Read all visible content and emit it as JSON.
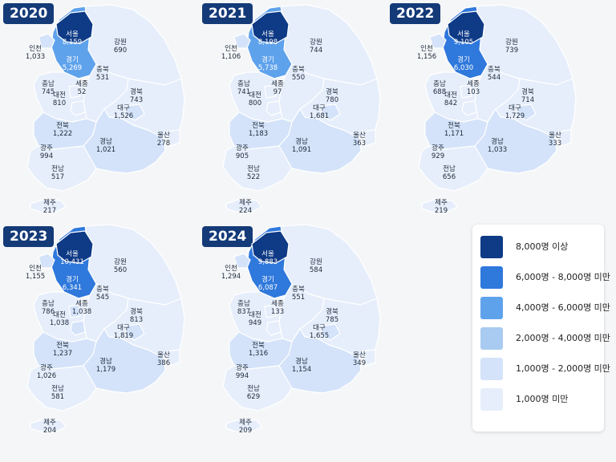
{
  "colors": {
    "c0": "#e6eefb",
    "c1": "#d4e3f9",
    "c2": "#a9cbf1",
    "c3": "#5fa2ec",
    "c4": "#2f78dc",
    "c5": "#0e3a86"
  },
  "legend": [
    {
      "label": "8,000명 이상",
      "color": "#0e3a86"
    },
    {
      "label": "6,000명 - 8,000명 미만",
      "color": "#2f78dc"
    },
    {
      "label": "4,000명 - 6,000명 미만",
      "color": "#5fa2ec"
    },
    {
      "label": "2,000명 - 4,000명 미만",
      "color": "#a9cbf1"
    },
    {
      "label": "1,000명 - 2,000명 미만",
      "color": "#d4e3f9"
    },
    {
      "label": "1,000명 미만",
      "color": "#e6eefb"
    }
  ],
  "region_names": {
    "seoul": "서울",
    "gyeonggi": "경기",
    "incheon": "인천",
    "gangwon": "강원",
    "chungbuk": "충북",
    "chungnam": "충남",
    "sejong": "세종",
    "daejeon": "대전",
    "gyeongbuk": "경북",
    "daegu": "대구",
    "ulsan": "울산",
    "jeonbuk": "전북",
    "gyeongnam": "경남",
    "gwangju": "광주",
    "jeonnam": "전남",
    "jeju": "제주"
  },
  "years": [
    {
      "year": "2020",
      "values": {
        "seoul": "8,159",
        "gyeonggi": "5,269",
        "incheon": "1,033",
        "gangwon": "690",
        "chungbuk": "531",
        "chungnam": "745",
        "sejong": "52",
        "daejeon": "810",
        "gyeongbuk": "743",
        "daegu": "1,526",
        "ulsan": "278",
        "jeonbuk": "1,222",
        "gyeongnam": "1,021",
        "gwangju": "994",
        "jeonnam": "517",
        "jeju": "217"
      }
    },
    {
      "year": "2021",
      "values": {
        "seoul": "8,198",
        "gyeonggi": "5,738",
        "incheon": "1,106",
        "gangwon": "744",
        "chungbuk": "550",
        "chungnam": "741",
        "sejong": "97",
        "daejeon": "800",
        "gyeongbuk": "780",
        "daegu": "1,681",
        "ulsan": "363",
        "jeonbuk": "1,183",
        "gyeongnam": "1,091",
        "gwangju": "905",
        "jeonnam": "522",
        "jeju": "224"
      }
    },
    {
      "year": "2022",
      "values": {
        "seoul": "9,105",
        "gyeonggi": "6,030",
        "incheon": "1,156",
        "gangwon": "739",
        "chungbuk": "544",
        "chungnam": "688",
        "sejong": "103",
        "daejeon": "842",
        "gyeongbuk": "714",
        "daegu": "1,729",
        "ulsan": "333",
        "jeonbuk": "1,171",
        "gyeongnam": "1,033",
        "gwangju": "929",
        "jeonnam": "656",
        "jeju": "219"
      }
    },
    {
      "year": "2023",
      "values": {
        "seoul": "10,431",
        "gyeonggi": "6,341",
        "incheon": "1,155",
        "gangwon": "560",
        "chungbuk": "545",
        "chungnam": "786",
        "sejong": "1,038",
        "daejeon": "1,038",
        "gyeongbuk": "813",
        "daegu": "1,819",
        "ulsan": "386",
        "jeonbuk": "1,237",
        "gyeongnam": "1,179",
        "gwangju": "1,026",
        "jeonnam": "581",
        "jeju": "204"
      }
    },
    {
      "year": "2024",
      "values": {
        "seoul": "9,883",
        "gyeonggi": "6,087",
        "incheon": "1,294",
        "gangwon": "584",
        "chungbuk": "551",
        "chungnam": "837",
        "sejong": "133",
        "daejeon": "949",
        "gyeongbuk": "785",
        "daegu": "1,655",
        "ulsan": "349",
        "jeonbuk": "1,316",
        "gyeongnam": "1,154",
        "gwangju": "994",
        "jeonnam": "629",
        "jeju": "209"
      }
    }
  ]
}
